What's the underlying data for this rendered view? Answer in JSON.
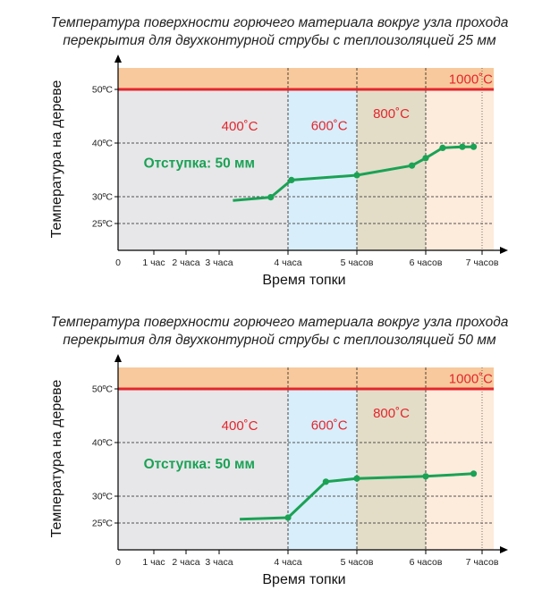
{
  "colors": {
    "fire_band": "#f8c99c",
    "band_400": "#e7e7e9",
    "band_600": "#d8eefa",
    "band_800": "#e3ddc8",
    "band_1000": "#fdebdc",
    "limit_line": "#e3262d",
    "series": "#1aa255",
    "label_red": "#e3262d",
    "label_green": "#1aa255",
    "axis": "#000000"
  },
  "chart_data": [
    {
      "type": "line",
      "title_line1": "Температура поверхности горючего материала вокруг узла прохода",
      "title_line2": "перекрытия для двухконтурной струбы с теплоизоляцией 25 мм",
      "xlabel": "Время топки",
      "ylabel": "Температура на дереве",
      "x_ticks": [
        {
          "x": 0,
          "label": "0"
        },
        {
          "x": 1,
          "label": "1 час"
        },
        {
          "x": 2,
          "label": "2 часа"
        },
        {
          "x": 3,
          "label": "3 часа"
        },
        {
          "x": 4,
          "label": "4 часа"
        },
        {
          "x": 5,
          "label": "5 часов"
        },
        {
          "x": 6,
          "label": "6 часов"
        },
        {
          "x": 7,
          "label": "7 часов"
        }
      ],
      "y_ticks": [
        {
          "y": 25,
          "label": "25ºC"
        },
        {
          "y": 30,
          "label": "30ºC"
        },
        {
          "y": 40,
          "label": "40ºC"
        },
        {
          "y": 50,
          "label": "50ºC"
        }
      ],
      "ylim": [
        20,
        54
      ],
      "xlim": [
        0,
        7.35
      ],
      "limit_value": 50,
      "zones": [
        {
          "name": "band-400",
          "label": "400˚C",
          "x_start": 0,
          "x_end": 4,
          "color_key": "band_400",
          "label_x": 3.3,
          "label_y": 42.3
        },
        {
          "name": "band-600",
          "label": "600˚C",
          "x_start": 4,
          "x_end": 5,
          "color_key": "band_600",
          "label_x": 4.6,
          "label_y": 42.4
        },
        {
          "name": "band-800",
          "label": "800˚C",
          "x_start": 5,
          "x_end": 6,
          "color_key": "band_800",
          "label_x": 5.5,
          "label_y": 44.7
        },
        {
          "name": "band-1000",
          "label": "1000˚C",
          "x_start": 6,
          "x_end": 7.35,
          "color_key": "band_1000",
          "label_x": 6.8,
          "label_y": 51.1
        }
      ],
      "series": [
        {
          "name": "Отступка: 50 мм",
          "label_x": 2.4,
          "label_y": 35.4,
          "points": [
            {
              "x": 3.2,
              "y": 29.3,
              "marker": false
            },
            {
              "x": 3.75,
              "y": 29.9,
              "marker": true
            },
            {
              "x": 4.05,
              "y": 33.1,
              "marker": true
            },
            {
              "x": 5.0,
              "y": 34.0,
              "marker": true
            },
            {
              "x": 5.8,
              "y": 35.8,
              "marker": true
            },
            {
              "x": 6.0,
              "y": 37.2,
              "marker": true
            },
            {
              "x": 6.3,
              "y": 39.1,
              "marker": true
            },
            {
              "x": 6.65,
              "y": 39.3,
              "marker": true
            },
            {
              "x": 6.85,
              "y": 39.3,
              "marker": true
            }
          ]
        }
      ]
    },
    {
      "type": "line",
      "title_line1": "Температура поверхности горючего материала вокруг узла прохода",
      "title_line2": "перекрытия для двухконтурной струбы с теплоизоляцией 50 мм",
      "xlabel": "Время топки",
      "ylabel": "Температура на дереве",
      "x_ticks": [
        {
          "x": 0,
          "label": "0"
        },
        {
          "x": 1,
          "label": "1 час"
        },
        {
          "x": 2,
          "label": "2 часа"
        },
        {
          "x": 3,
          "label": "3 часа"
        },
        {
          "x": 4,
          "label": "4 часа"
        },
        {
          "x": 5,
          "label": "5 часов"
        },
        {
          "x": 6,
          "label": "6 часов"
        },
        {
          "x": 7,
          "label": "7 часов"
        }
      ],
      "y_ticks": [
        {
          "y": 25,
          "label": "25ºC"
        },
        {
          "y": 30,
          "label": "30ºC"
        },
        {
          "y": 40,
          "label": "40ºC"
        },
        {
          "y": 50,
          "label": "50ºC"
        }
      ],
      "ylim": [
        20,
        54
      ],
      "xlim": [
        0,
        7.35
      ],
      "limit_value": 50,
      "zones": [
        {
          "name": "band-400",
          "label": "400˚C",
          "x_start": 0,
          "x_end": 4,
          "color_key": "band_400",
          "label_x": 3.3,
          "label_y": 42.3
        },
        {
          "name": "band-600",
          "label": "600˚C",
          "x_start": 4,
          "x_end": 5,
          "color_key": "band_600",
          "label_x": 4.6,
          "label_y": 42.4
        },
        {
          "name": "band-800",
          "label": "800˚C",
          "x_start": 5,
          "x_end": 6,
          "color_key": "band_800",
          "label_x": 5.5,
          "label_y": 44.7
        },
        {
          "name": "band-1000",
          "label": "1000˚C",
          "x_start": 6,
          "x_end": 7.35,
          "color_key": "band_1000",
          "label_x": 6.8,
          "label_y": 51.1
        }
      ],
      "series": [
        {
          "name": "Отступка: 50 мм",
          "label_x": 2.4,
          "label_y": 35.2,
          "points": [
            {
              "x": 3.3,
              "y": 25.7,
              "marker": false
            },
            {
              "x": 4.0,
              "y": 26.0,
              "marker": true
            },
            {
              "x": 4.55,
              "y": 32.7,
              "marker": true
            },
            {
              "x": 5.0,
              "y": 33.3,
              "marker": true
            },
            {
              "x": 6.0,
              "y": 33.7,
              "marker": true
            },
            {
              "x": 6.85,
              "y": 34.2,
              "marker": true
            }
          ]
        }
      ]
    }
  ]
}
